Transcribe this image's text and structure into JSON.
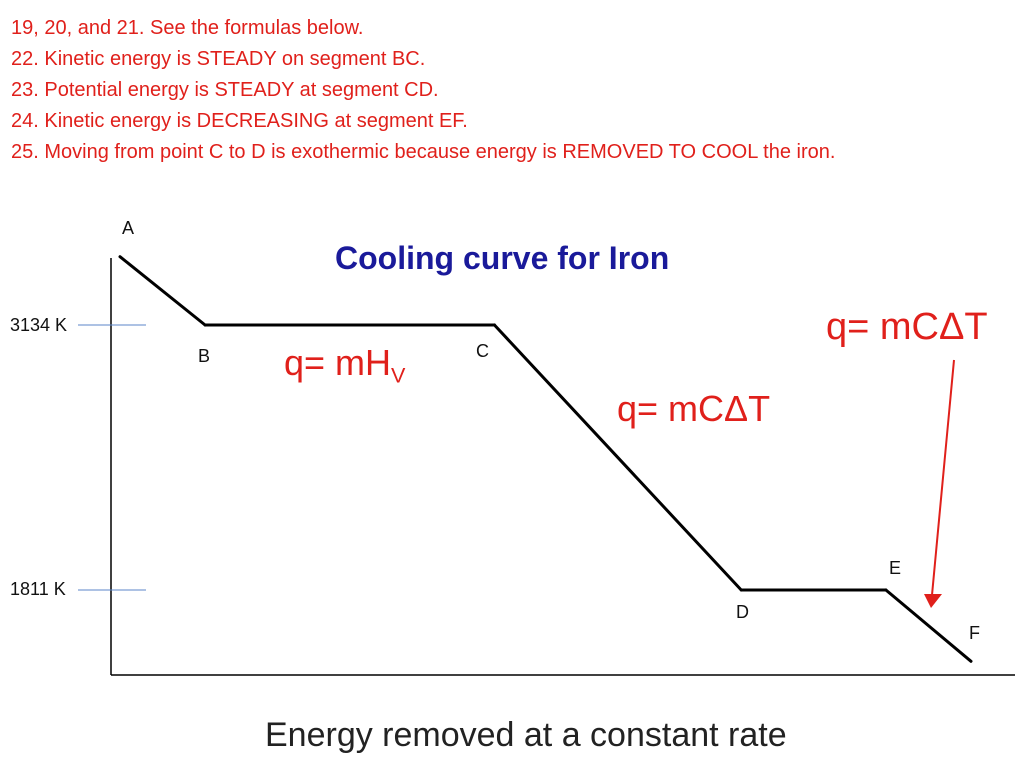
{
  "notes": [
    "19, 20, and 21.  See the formulas below.",
    "22.  Kinetic energy is STEADY on segment BC.",
    "23.  Potential energy is STEADY at segment CD.",
    "24.  Kinetic energy is DECREASING at segment EF.",
    "25.  Moving from point C to D is exothermic because energy is REMOVED TO COOL the iron."
  ],
  "colors": {
    "notes": "#e0201b",
    "title": "#1a1a9a",
    "curve": "#000000",
    "tick_line": "#5b86c8",
    "arrow": "#e0201b"
  },
  "chart_data": {
    "type": "line",
    "title": "Cooling curve for Iron",
    "xlabel": "Energy removed at a constant rate",
    "ylabel": "",
    "y_ticks": [
      {
        "value": 3134,
        "label": "3134 K"
      },
      {
        "value": 1811,
        "label": "1811 K"
      }
    ],
    "points": [
      {
        "label": "A",
        "x": 0.0,
        "y": 3475
      },
      {
        "label": "B",
        "x": 1.0,
        "y": 3134
      },
      {
        "label": "C",
        "x": 4.4,
        "y": 3134
      },
      {
        "label": "D",
        "x": 7.3,
        "y": 1811
      },
      {
        "label": "E",
        "x": 9.0,
        "y": 1811
      },
      {
        "label": "F",
        "x": 10.0,
        "y": 1455
      }
    ],
    "annotations": {
      "formula_bc": {
        "main": "q= mH",
        "sub": "V"
      },
      "formula_cd": "q= mCΔT",
      "formula_ef": "q= mCΔT"
    },
    "grid": false,
    "legend": "none"
  }
}
